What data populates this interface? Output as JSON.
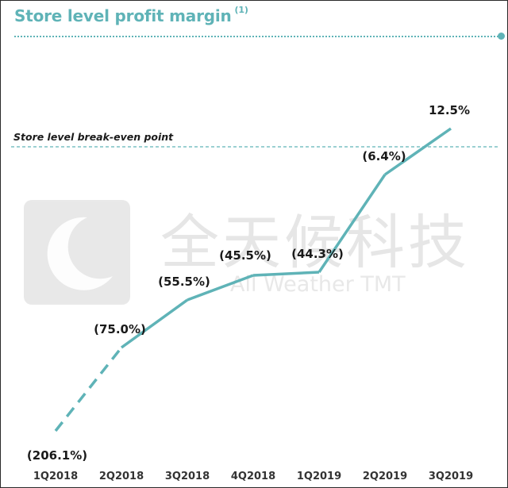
{
  "title": "Store level profit margin",
  "title_note": "(1)",
  "watermark": {
    "chinese": "全天候科技",
    "english": "All Weather TMT"
  },
  "colors": {
    "accent": "#5fb3b7",
    "text": "#1a1a1a",
    "watermark": "#e6e6e6"
  },
  "chart_data": {
    "type": "line",
    "title": "Store level profit margin",
    "xlabel": "",
    "ylabel": "",
    "categories": [
      "1Q2018",
      "2Q2018",
      "3Q2018",
      "4Q2018",
      "1Q2019",
      "2Q2019",
      "3Q2019"
    ],
    "series": [
      {
        "name": "Store level profit margin",
        "values": [
          -206.1,
          -75.0,
          -55.5,
          -45.5,
          -44.3,
          -6.4,
          12.5
        ],
        "labels": [
          "(206.1%)",
          "(75.0%)",
          "(55.5%)",
          "(45.5%)",
          "(44.3%)",
          "(6.4%)",
          "12.5%"
        ],
        "dashed_segments": [
          0
        ]
      }
    ],
    "reference_line": {
      "value": 0,
      "label": "Store level break-even point",
      "style": "dashed"
    },
    "grid": false,
    "legend": "none"
  }
}
